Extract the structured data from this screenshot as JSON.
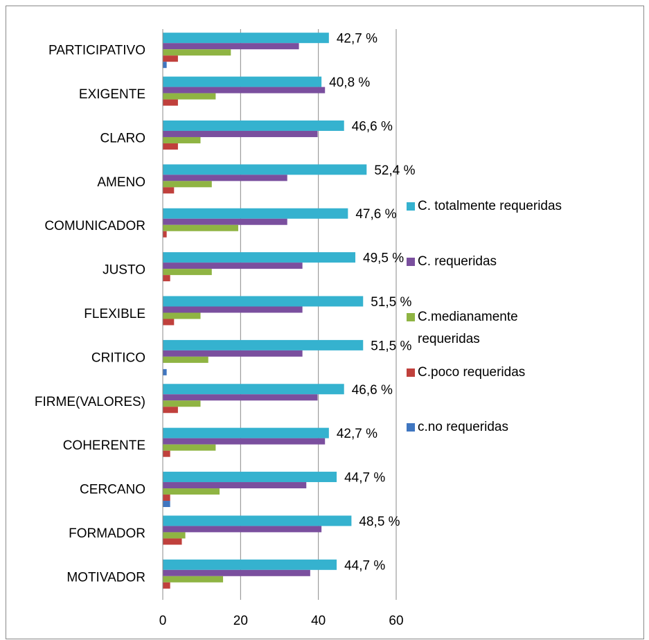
{
  "chart_data": {
    "type": "hbar",
    "categories": [
      "PARTICIPATIVO",
      "EXIGENTE",
      "CLARO",
      "AMENO",
      "COMUNICADOR",
      "JUSTO",
      "FLEXIBLE",
      "CRITICO",
      "FIRME(VALORES)",
      "COHERENTE",
      "CERCANO",
      "FORMADOR",
      "MOTIVADOR"
    ],
    "series": [
      {
        "name": "C. totalmente requeridas",
        "color": "#35b2cf",
        "values": [
          42.7,
          40.8,
          46.6,
          52.4,
          47.6,
          49.5,
          51.5,
          51.5,
          46.6,
          42.7,
          44.7,
          48.5,
          44.7
        ],
        "value_labels": [
          "42,7 %",
          "40,8 %",
          "46,6 %",
          "52,4 %",
          "47,6 %",
          "49,5 %",
          "51,5 %",
          "51,5 %",
          "46,6 %",
          "42,7 %",
          "44,7 %",
          "48,5 %",
          "44,7 %"
        ]
      },
      {
        "name": "C. requeridas",
        "color": "#7a4f9e",
        "values": [
          35.0,
          41.7,
          39.8,
          32.0,
          32.0,
          35.9,
          35.9,
          35.9,
          39.8,
          41.7,
          36.9,
          40.8,
          37.9
        ]
      },
      {
        "name": "C.medianamente requeridas",
        "color": "#8fb443",
        "values": [
          17.5,
          13.6,
          9.7,
          12.6,
          19.4,
          12.6,
          9.7,
          11.7,
          9.7,
          13.6,
          14.6,
          5.8,
          15.5
        ]
      },
      {
        "name": "C.poco requeridas",
        "color": "#c0403c",
        "values": [
          3.9,
          3.9,
          3.9,
          2.9,
          1.0,
          1.9,
          2.9,
          0,
          3.9,
          1.9,
          1.9,
          4.9,
          1.9
        ]
      },
      {
        "name": "c.no requeridas",
        "color": "#3f76c0",
        "values": [
          1.0,
          0,
          0,
          0,
          0,
          0,
          0,
          1.0,
          0,
          0,
          1.9,
          0,
          0
        ]
      }
    ],
    "xlim": [
      0,
      60
    ],
    "xticks": [
      0,
      20,
      40,
      60
    ],
    "grid": true,
    "legend": "right"
  }
}
